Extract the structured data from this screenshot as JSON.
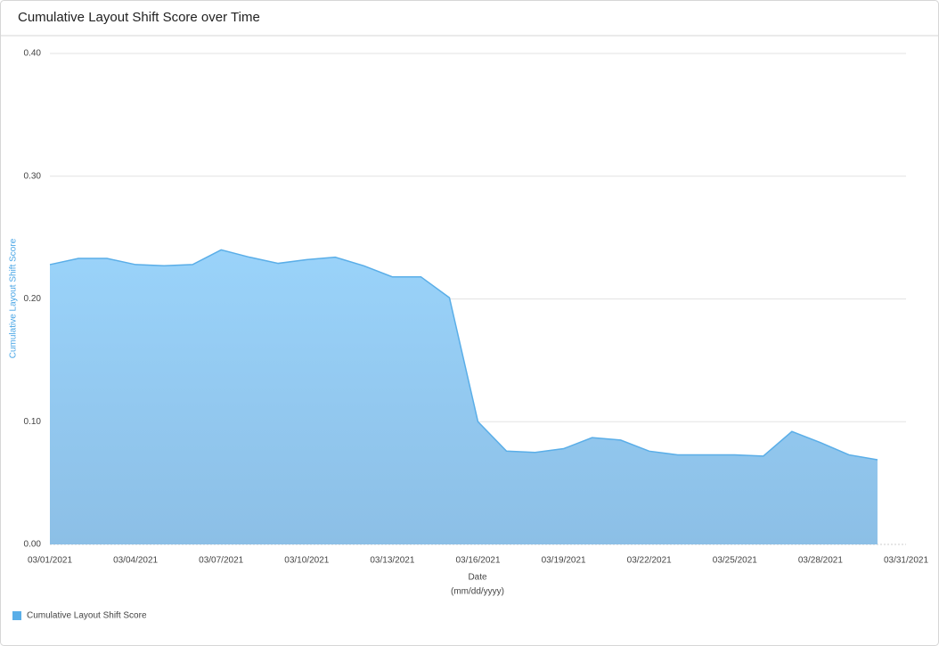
{
  "chart_data": {
    "type": "area",
    "title": "Cumulative Layout Shift Score over Time",
    "x_label": "Date",
    "x_label_sub": "(mm/dd/yyyy)",
    "y_label": "Cumulative Layout Shift Score",
    "x": [
      "03/01/2021",
      "03/02/2021",
      "03/03/2021",
      "03/04/2021",
      "03/05/2021",
      "03/06/2021",
      "03/07/2021",
      "03/08/2021",
      "03/09/2021",
      "03/10/2021",
      "03/11/2021",
      "03/12/2021",
      "03/13/2021",
      "03/14/2021",
      "03/15/2021",
      "03/16/2021",
      "03/17/2021",
      "03/18/2021",
      "03/19/2021",
      "03/20/2021",
      "03/21/2021",
      "03/22/2021",
      "03/23/2021",
      "03/24/2021",
      "03/25/2021",
      "03/26/2021",
      "03/27/2021",
      "03/28/2021",
      "03/29/2021",
      "03/30/2021"
    ],
    "series": [
      {
        "name": "Cumulative Layout Shift Score",
        "color": "#5aaee8",
        "values": [
          0.228,
          0.233,
          0.233,
          0.228,
          0.227,
          0.228,
          0.24,
          0.234,
          0.229,
          0.232,
          0.234,
          0.227,
          0.218,
          0.218,
          0.201,
          0.1,
          0.076,
          0.075,
          0.078,
          0.087,
          0.085,
          0.076,
          0.073,
          0.073,
          0.073,
          0.072,
          0.092,
          0.083,
          0.073,
          0.069
        ]
      }
    ],
    "xlim": [
      "03/01/2021",
      "03/31/2021"
    ],
    "xticks": [
      "03/01/2021",
      "03/04/2021",
      "03/07/2021",
      "03/10/2021",
      "03/13/2021",
      "03/16/2021",
      "03/19/2021",
      "03/22/2021",
      "03/25/2021",
      "03/28/2021",
      "03/31/2021"
    ],
    "ylim": [
      0,
      0.4
    ],
    "yticks": [
      {
        "value": 0,
        "label": "0.00"
      },
      {
        "value": 0.1,
        "label": "0.10"
      },
      {
        "value": 0.2,
        "label": "0.20"
      },
      {
        "value": 0.3,
        "label": "0.30"
      },
      {
        "value": 0.4,
        "label": "0.40"
      }
    ],
    "grid": true,
    "legend": "bottom-left"
  }
}
